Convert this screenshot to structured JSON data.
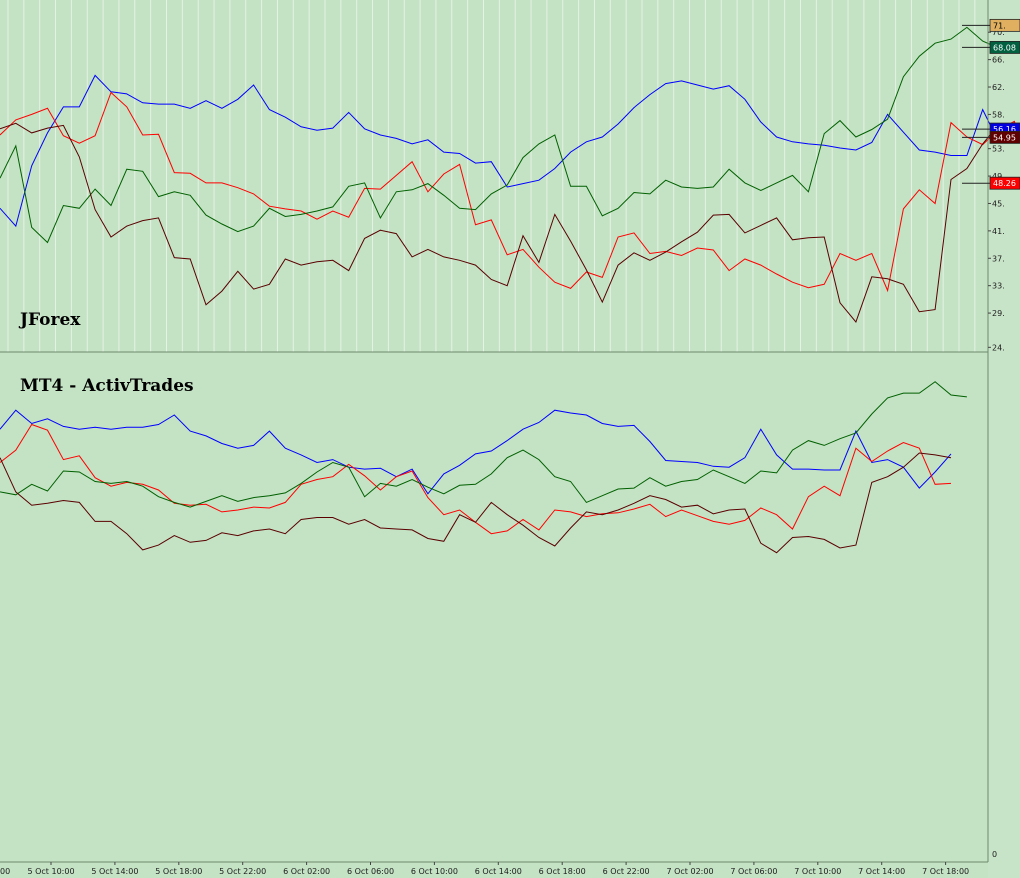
{
  "chart_data": {
    "type": "line",
    "x_labels": [
      "5 Oct 10:00",
      "5 Oct 14:00",
      "5 Oct 18:00",
      "5 Oct 22:00",
      "6 Oct 02:00",
      "6 Oct 06:00",
      "6 Oct 10:00",
      "6 Oct 14:00",
      "6 Oct 18:00",
      "6 Oct 22:00",
      "7 Oct 02:00",
      "7 Oct 06:00",
      "7 Oct 10:00",
      "7 Oct 14:00",
      "7 Oct 18:00"
    ],
    "x_start_fragment": "00",
    "y_ticks_top": [
      "70.",
      "66.",
      "62.",
      "58.",
      "53.",
      "49.",
      "45.",
      "41.",
      "37.",
      "33.",
      "29.",
      "24."
    ],
    "y_tick_zero": "0",
    "top_ylim": [
      24.8,
      71.5
    ],
    "colors": {
      "blue": "#0000ff",
      "red": "#ff0000",
      "green": "#006000",
      "maroon": "#5a0000",
      "background": "#c4e2c4"
    },
    "panels": [
      {
        "title": "JForex",
        "series": [
          {
            "color": "blue",
            "values": [
              44.6,
              42.0,
              50.8,
              55.6,
              59.4,
              59.4,
              64.0,
              61.6,
              61.3,
              60.0,
              59.8,
              59.8,
              59.2,
              60.3,
              59.2,
              60.5,
              62.6,
              59.0,
              57.9,
              56.5,
              56.0,
              56.3,
              58.6,
              56.2,
              55.3,
              54.8,
              54.0,
              54.6,
              52.8,
              52.6,
              51.2,
              51.4,
              47.7,
              48.2,
              48.7,
              50.4,
              52.8,
              54.3,
              55.0,
              56.9,
              59.3,
              61.2,
              62.8,
              63.2,
              62.6,
              62.0,
              62.5,
              60.5,
              57.2,
              55.0,
              54.3,
              54.0,
              53.8,
              53.4,
              53.1,
              54.2,
              58.3,
              55.7,
              53.1,
              52.8,
              52.3,
              52.3,
              59.0,
              54.3,
              55.0,
              53.5,
              49.2,
              51.7,
              56.2
            ]
          },
          {
            "color": "red",
            "values": [
              55.3,
              57.5,
              58.3,
              59.2,
              55.2,
              54.1,
              55.2,
              61.5,
              59.4,
              55.3,
              55.4,
              49.8,
              49.7,
              48.3,
              48.3,
              47.6,
              46.7,
              44.9,
              44.5,
              44.2,
              43.0,
              44.2,
              43.3,
              47.5,
              47.4,
              49.4,
              51.4,
              47.0,
              49.6,
              51.0,
              42.2,
              42.9,
              37.8,
              38.6,
              36.0,
              33.8,
              32.9,
              35.3,
              34.5,
              40.4,
              41.0,
              38.0,
              38.3,
              37.7,
              38.8,
              38.5,
              35.5,
              37.2,
              36.3,
              35.0,
              33.8,
              33.0,
              33.5,
              38.0,
              37.0,
              38.0,
              32.6,
              44.5,
              47.3,
              45.3,
              57.1,
              55.0,
              53.9,
              56.1,
              57.3,
              50.0,
              48.0,
              48.2,
              48.5
            ]
          },
          {
            "color": "green",
            "values": [
              49.0,
              53.7,
              41.8,
              39.6,
              45.0,
              44.6,
              47.4,
              45.0,
              50.3,
              50.0,
              46.3,
              47.0,
              46.5,
              43.6,
              42.3,
              41.2,
              42.0,
              44.6,
              43.4,
              43.7,
              44.2,
              44.8,
              47.8,
              48.3,
              43.2,
              47.0,
              47.3,
              48.2,
              46.5,
              44.6,
              44.4,
              46.7,
              48.0,
              52.0,
              54.0,
              55.3,
              47.8,
              47.8,
              43.5,
              44.6,
              46.9,
              46.7,
              48.7,
              47.7,
              47.5,
              47.7,
              50.3,
              48.3,
              47.2,
              48.3,
              49.4,
              47.0,
              55.5,
              57.4,
              55.0,
              56.1,
              57.6,
              63.8,
              66.8,
              68.7,
              69.3,
              71.0,
              69.0,
              68.0
            ]
          },
          {
            "color": "maroon",
            "values": [
              56.2,
              57.0,
              55.6,
              56.3,
              56.7,
              52.1,
              44.4,
              40.4,
              42.0,
              42.8,
              43.2,
              37.4,
              37.2,
              30.5,
              32.5,
              35.4,
              32.8,
              33.5,
              37.2,
              36.3,
              36.8,
              37.0,
              35.5,
              40.2,
              41.4,
              40.9,
              37.5,
              38.6,
              37.5,
              37.0,
              36.3,
              34.2,
              33.3,
              40.6,
              36.7,
              43.7,
              39.8,
              35.6,
              30.9,
              36.3,
              38.1,
              37.0,
              38.2,
              39.7,
              41.1,
              43.6,
              43.7,
              41.0,
              42.1,
              43.2,
              40.0,
              40.3,
              40.4,
              30.8,
              28.0,
              34.6,
              34.3,
              33.5,
              29.5,
              29.8,
              48.8,
              50.4,
              54.0,
              56.8,
              57.0,
              57.0,
              55.9
            ]
          }
        ]
      },
      {
        "title": "MT4 - ActivTrades",
        "series": [
          {
            "color": "blue",
            "values": [
              49.0,
              51.0,
              49.6,
              50.1,
              49.3,
              49.0,
              49.2,
              49.0,
              49.2,
              49.2,
              49.5,
              50.5,
              48.8,
              48.3,
              47.5,
              47.0,
              47.3,
              48.8,
              47.0,
              46.3,
              45.5,
              45.8,
              45.0,
              44.8,
              44.9,
              44.0,
              44.8,
              42.2,
              44.3,
              45.2,
              46.4,
              46.7,
              47.8,
              49.0,
              49.7,
              51.0,
              50.7,
              50.5,
              49.6,
              49.3,
              49.4,
              47.7,
              45.7,
              45.6,
              45.5,
              45.1,
              45.0,
              46.0,
              49.0,
              46.3,
              44.8,
              44.8,
              44.7,
              44.7,
              48.8,
              45.5,
              45.8,
              45.0,
              42.8,
              44.5,
              46.4
            ]
          },
          {
            "color": "red",
            "values": [
              45.5,
              46.8,
              49.5,
              48.9,
              45.8,
              46.2,
              43.9,
              43.0,
              43.4,
              43.2,
              42.6,
              41.2,
              41.0,
              41.1,
              40.3,
              40.5,
              40.8,
              40.7,
              41.3,
              43.2,
              43.7,
              44.0,
              45.3,
              44.1,
              42.6,
              44.0,
              44.6,
              41.8,
              40.0,
              40.5,
              39.2,
              38.0,
              38.3,
              39.5,
              38.4,
              40.5,
              40.3,
              39.8,
              40.1,
              40.2,
              40.6,
              41.1,
              39.8,
              40.5,
              39.9,
              39.3,
              39.0,
              39.4,
              40.7,
              40.0,
              38.5,
              41.9,
              43.0,
              42.0,
              47.0,
              45.6,
              46.7,
              47.6,
              47.0,
              43.2,
              43.3
            ]
          },
          {
            "color": "green",
            "values": [
              42.4,
              42.1,
              43.2,
              42.5,
              44.6,
              44.5,
              43.5,
              43.3,
              43.5,
              43.0,
              41.9,
              41.3,
              40.8,
              41.4,
              42.0,
              41.4,
              41.8,
              42.0,
              42.3,
              43.3,
              44.5,
              45.5,
              45.0,
              41.9,
              43.3,
              43.0,
              43.7,
              42.9,
              42.2,
              43.1,
              43.2,
              44.3,
              46.0,
              46.8,
              45.8,
              44.0,
              43.5,
              41.3,
              42.0,
              42.7,
              42.8,
              43.9,
              43.0,
              43.5,
              43.7,
              44.7,
              44.0,
              43.3,
              44.6,
              44.4,
              46.8,
              47.8,
              47.3,
              48.0,
              48.6,
              50.6,
              52.3,
              52.8,
              52.8,
              54.0,
              52.6,
              52.4
            ]
          },
          {
            "color": "maroon",
            "values": [
              46.0,
              42.4,
              41.0,
              41.2,
              41.5,
              41.3,
              39.3,
              39.3,
              38.0,
              36.3,
              36.8,
              37.8,
              37.1,
              37.3,
              38.1,
              37.8,
              38.3,
              38.5,
              38.0,
              39.5,
              39.7,
              39.7,
              39.0,
              39.5,
              38.6,
              38.5,
              38.4,
              37.5,
              37.2,
              40.0,
              39.2,
              41.3,
              40.0,
              38.9,
              37.6,
              36.7,
              38.6,
              40.3,
              40.0,
              40.5,
              41.2,
              42.0,
              41.6,
              40.8,
              41.0,
              40.1,
              40.5,
              40.6,
              37.0,
              36.0,
              37.6,
              37.7,
              37.4,
              36.5,
              36.8,
              43.4,
              44.0,
              45.0,
              46.5,
              46.3,
              46.0
            ]
          }
        ]
      }
    ],
    "price_badges": [
      {
        "text": "71.",
        "value": 71.3,
        "fill": "#e0b060",
        "text_color": "#000000"
      },
      {
        "text": "68.08",
        "value": 68.08,
        "fill": "#006040",
        "text_color": "#ffffff"
      },
      {
        "text": "56.16",
        "value": 56.16,
        "fill": "#0000e0",
        "text_color": "#ffffff"
      },
      {
        "text": "54.95",
        "value": 54.95,
        "fill": "#600000",
        "text_color": "#ffffff"
      },
      {
        "text": "48.26",
        "value": 48.26,
        "fill": "#ff0000",
        "text_color": "#ffffff"
      }
    ]
  }
}
